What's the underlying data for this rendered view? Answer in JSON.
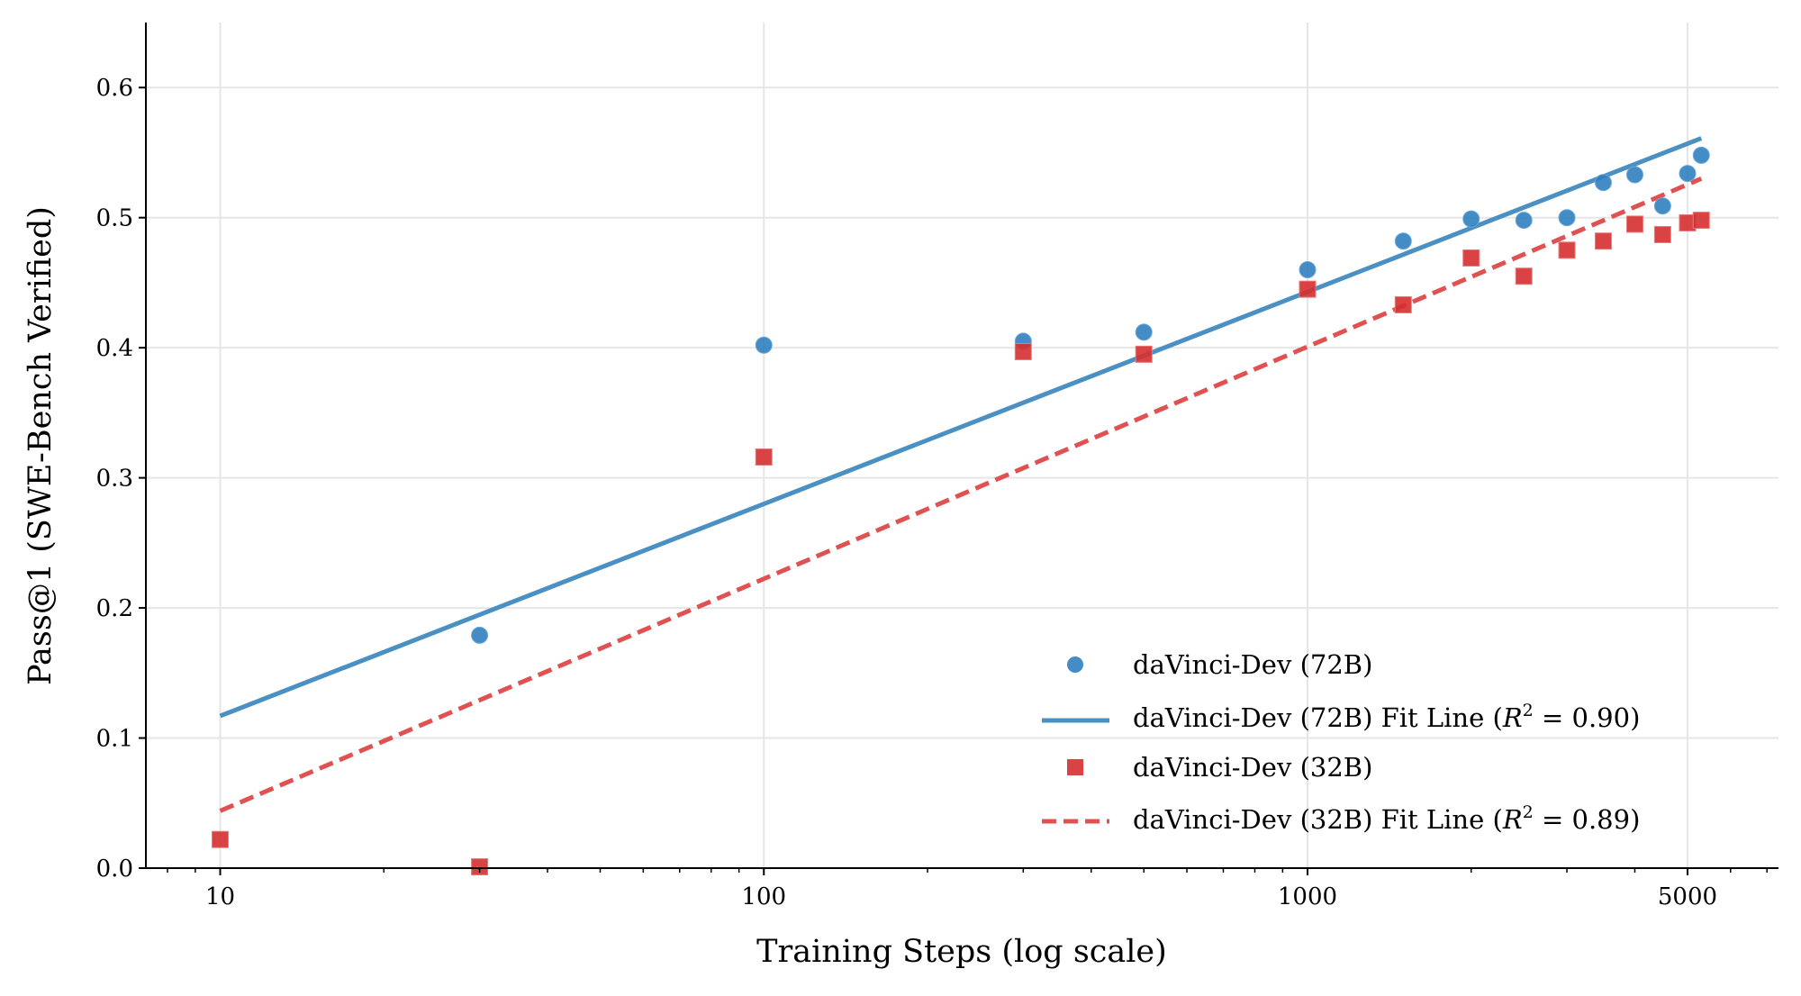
{
  "chart_data": {
    "type": "scatter",
    "title": "",
    "xlabel": "Training Steps (log scale)",
    "ylabel": "Pass@1 (SWE-Bench Verified)",
    "xscale": "log",
    "xlim": [
      7.3,
      7350
    ],
    "ylim": [
      0,
      0.65
    ],
    "grid": true,
    "legend_position": "lower-right",
    "xticks": [
      10,
      100,
      1000,
      5000
    ],
    "xtick_labels": [
      "10",
      "100",
      "1000",
      "5000"
    ],
    "yticks": [
      0.0,
      0.1,
      0.2,
      0.3,
      0.4,
      0.5,
      0.6
    ],
    "ytick_labels": [
      "0.0",
      "0.1",
      "0.2",
      "0.3",
      "0.4",
      "0.5",
      "0.6"
    ],
    "colors": {
      "blue": "#2f7fbf",
      "red": "#d62f2f",
      "blue_line": "#4a90c2",
      "red_line": "#e05252"
    },
    "series": [
      {
        "name": "daVinci-Dev (72B)",
        "kind": "scatter",
        "marker": "circle",
        "color": "#2f7fbf",
        "x": [
          30,
          100,
          300,
          500,
          1000,
          1500,
          2000,
          2500,
          3000,
          3500,
          4000,
          4500,
          5000,
          5300
        ],
        "y": [
          0.179,
          0.402,
          0.405,
          0.412,
          0.46,
          0.482,
          0.499,
          0.498,
          0.5,
          0.527,
          0.533,
          0.509,
          0.534,
          0.548
        ]
      },
      {
        "name": "daVinci-Dev (72B) Fit Line",
        "r2_label": "0.90",
        "kind": "line",
        "style": "solid",
        "color": "#4a90c2",
        "x": [
          10,
          5300
        ],
        "y": [
          0.117,
          0.561
        ]
      },
      {
        "name": "daVinci-Dev (32B)",
        "kind": "scatter",
        "marker": "square",
        "color": "#d62f2f",
        "x": [
          10,
          30,
          100,
          300,
          500,
          1000,
          1500,
          2000,
          2500,
          3000,
          3500,
          4000,
          4500,
          5000,
          5300
        ],
        "y": [
          0.022,
          0.001,
          0.316,
          0.397,
          0.395,
          0.445,
          0.433,
          0.469,
          0.455,
          0.475,
          0.482,
          0.495,
          0.487,
          0.496,
          0.498
        ]
      },
      {
        "name": "daVinci-Dev (32B) Fit Line",
        "r2_label": "0.89",
        "kind": "line",
        "style": "dashed",
        "color": "#e05252",
        "x": [
          10,
          5300
        ],
        "y": [
          0.044,
          0.53
        ]
      }
    ],
    "legend": [
      {
        "label": "daVinci-Dev (72B)"
      },
      {
        "label": "daVinci-Dev (72B) Fit Line (",
        "r2": "0.90"
      },
      {
        "label": "daVinci-Dev (32B)"
      },
      {
        "label": "daVinci-Dev (32B) Fit Line (",
        "r2": "0.89"
      }
    ]
  }
}
